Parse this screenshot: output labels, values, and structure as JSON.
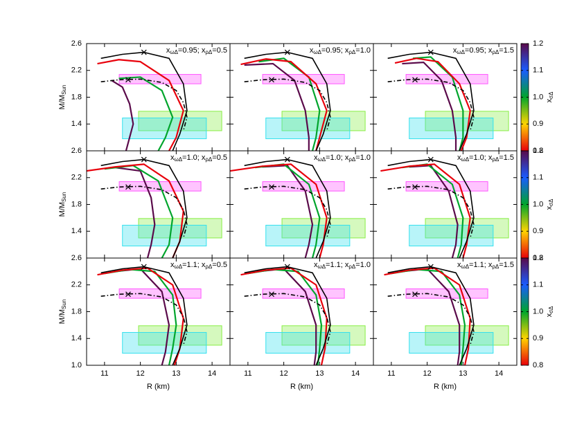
{
  "chart_data": {
    "type": "line",
    "xlabel": "R (km)",
    "ylabel": [
      "M/M",
      "Sun"
    ],
    "xlim": [
      10.5,
      14.5
    ],
    "xticks": [
      11,
      12,
      13,
      14
    ],
    "ylim": [
      1.0,
      2.6
    ],
    "yticks": [
      {
        "value": 1.0,
        "label": "1.0"
      },
      1.4,
      1.8,
      2.2,
      2.6
    ],
    "colorbar": {
      "label": [
        "x",
        "σΔ"
      ],
      "lim": [
        0.8,
        1.2
      ],
      "ticks": [
        0.8,
        0.9,
        {
          "value": 1.0,
          "label": "1.0"
        },
        1.1,
        1.2
      ],
      "colors": [
        "#e8000b",
        "#ffd400",
        "#00a52c",
        "#1a5cff",
        "#5a0a4a"
      ]
    },
    "envelope": {
      "color": "#000000",
      "R": [
        10.9,
        11.5,
        12.1,
        12.8,
        13.2,
        13.3,
        13.1,
        12.9
      ],
      "M": [
        2.38,
        2.44,
        2.47,
        2.38,
        2.0,
        1.6,
        1.25,
        1.0
      ]
    },
    "envelope_marker": {
      "x": 12.1,
      "y": 2.47
    },
    "reference": {
      "color": "#000000",
      "R": [
        10.9,
        11.4,
        12.0,
        12.6,
        13.0,
        13.2,
        13.3,
        13.2
      ],
      "M": [
        2.03,
        2.06,
        2.07,
        2.02,
        1.9,
        1.72,
        1.5,
        1.3
      ]
    },
    "reference_marker": {
      "x": 11.66,
      "y": 2.06
    },
    "regions": [
      {
        "color": "#ff55ff",
        "xlim": [
          11.41,
          13.69
        ],
        "ylim": [
          2.0,
          2.14
        ]
      },
      {
        "color": "#88ee44",
        "xlim": [
          11.95,
          14.27
        ],
        "ylim": [
          1.3,
          1.59
        ]
      },
      {
        "color": "#33e0ee",
        "xlim": [
          11.5,
          13.84
        ],
        "ylim": [
          1.18,
          1.49
        ]
      }
    ],
    "panels": [
      {
        "label": [
          "x",
          "ωΔ",
          "=0.95; x",
          "ρΔ",
          "=0.5"
        ],
        "curves": [
          {
            "x_sigma": 0.8,
            "R": [
              10.8,
              11.4,
              12.0,
              12.8,
              13.2,
              13.0,
              12.8
            ],
            "M": [
              2.3,
              2.36,
              2.33,
              2.05,
              1.6,
              1.2,
              1.0
            ]
          },
          {
            "x_sigma": 1.0,
            "R": [
              11.4,
              12.0,
              12.6,
              12.9,
              12.7,
              12.5
            ],
            "M": [
              2.08,
              2.1,
              1.9,
              1.5,
              1.2,
              1.0
            ]
          },
          {
            "x_sigma": 1.2,
            "R": [
              11.2,
              11.5,
              11.7,
              11.8,
              11.7,
              11.6
            ],
            "M": [
              2.05,
              1.95,
              1.7,
              1.4,
              1.2,
              1.0
            ]
          }
        ]
      },
      {
        "label": [
          "x",
          "ωΔ",
          "=0.95; x",
          "ρΔ",
          "=1.0"
        ],
        "curves": [
          {
            "x_sigma": 0.8,
            "R": [
              10.8,
              11.5,
              12.2,
              12.9,
              13.2,
              13.0,
              12.9
            ],
            "M": [
              2.29,
              2.37,
              2.33,
              2.0,
              1.6,
              1.2,
              1.0
            ]
          },
          {
            "x_sigma": 1.0,
            "R": [
              11.3,
              12.0,
              12.7,
              13.0,
              12.9,
              12.8
            ],
            "M": [
              2.33,
              2.38,
              2.1,
              1.6,
              1.2,
              1.0
            ]
          },
          {
            "x_sigma": 1.2,
            "R": [
              10.9,
              11.7,
              12.3,
              12.6,
              12.7,
              12.7
            ],
            "M": [
              2.28,
              2.3,
              2.05,
              1.6,
              1.2,
              1.0
            ]
          }
        ]
      },
      {
        "label": [
          "x",
          "ωΔ",
          "=0.95; x",
          "ρΔ",
          "=1.5"
        ],
        "curves": [
          {
            "x_sigma": 0.8,
            "R": [
              11.1,
              11.7,
              12.3,
              12.9,
              13.2,
              13.1,
              12.95
            ],
            "M": [
              2.31,
              2.38,
              2.33,
              2.0,
              1.6,
              1.2,
              1.0
            ]
          },
          {
            "x_sigma": 1.0,
            "R": [
              11.6,
              12.1,
              12.7,
              13.0,
              13.0,
              12.9
            ],
            "M": [
              2.38,
              2.4,
              2.1,
              1.6,
              1.2,
              1.0
            ]
          },
          {
            "x_sigma": 1.2,
            "R": [
              11.3,
              11.9,
              12.4,
              12.7,
              12.8,
              12.8
            ],
            "M": [
              2.3,
              2.32,
              2.05,
              1.6,
              1.2,
              1.0
            ]
          }
        ]
      },
      {
        "label": [
          "x",
          "ωΔ",
          "=1.0; x",
          "ρΔ",
          "=0.5"
        ],
        "curves": [
          {
            "x_sigma": 0.8,
            "R": [
              10.5,
              11.3,
              12.1,
              12.8,
              13.2,
              13.1,
              12.9
            ],
            "M": [
              2.3,
              2.36,
              2.4,
              2.15,
              1.7,
              1.25,
              1.0
            ]
          },
          {
            "x_sigma": 1.0,
            "R": [
              11.0,
              11.8,
              12.5,
              12.9,
              12.8,
              12.6
            ],
            "M": [
              2.33,
              2.38,
              2.15,
              1.6,
              1.2,
              1.0
            ]
          },
          {
            "x_sigma": 1.2,
            "R": [
              11.3,
              12.0,
              12.3,
              12.4,
              12.3,
              12.2
            ],
            "M": [
              2.35,
              2.3,
              1.9,
              1.5,
              1.2,
              1.0
            ]
          }
        ]
      },
      {
        "label": [
          "x",
          "ωΔ",
          "=1.0; x",
          "ρΔ",
          "=1.0"
        ],
        "curves": [
          {
            "x_sigma": 0.8,
            "R": [
              10.5,
              11.4,
              12.2,
              12.9,
              13.2,
              13.1,
              13.0
            ],
            "M": [
              2.3,
              2.37,
              2.4,
              2.1,
              1.6,
              1.2,
              1.0
            ]
          },
          {
            "x_sigma": 1.0,
            "R": [
              11.2,
              12.0,
              12.7,
              13.0,
              12.9,
              12.8
            ],
            "M": [
              2.35,
              2.4,
              2.1,
              1.6,
              1.2,
              1.0
            ]
          },
          {
            "x_sigma": 1.2,
            "R": [
              11.4,
              12.1,
              12.6,
              12.8,
              12.7,
              12.6
            ],
            "M": [
              2.36,
              2.38,
              2.0,
              1.5,
              1.2,
              1.0
            ]
          }
        ]
      },
      {
        "label": [
          "x",
          "ωΔ",
          "=1.0; x",
          "ρΔ",
          "=1.5"
        ],
        "curves": [
          {
            "x_sigma": 0.8,
            "R": [
              10.7,
              11.5,
              12.2,
              12.9,
              13.2,
              13.1,
              13.0
            ],
            "M": [
              2.3,
              2.37,
              2.4,
              2.1,
              1.6,
              1.2,
              1.0
            ]
          },
          {
            "x_sigma": 1.0,
            "R": [
              11.3,
              12.0,
              12.7,
              13.0,
              12.95,
              12.85
            ],
            "M": [
              2.35,
              2.4,
              2.1,
              1.6,
              1.2,
              1.0
            ]
          },
          {
            "x_sigma": 1.2,
            "R": [
              11.5,
              12.1,
              12.6,
              12.85,
              12.8,
              12.7
            ],
            "M": [
              2.36,
              2.38,
              2.0,
              1.5,
              1.2,
              1.0
            ]
          }
        ]
      },
      {
        "label": [
          "x",
          "ωΔ",
          "=1.1; x",
          "ρΔ",
          "=0.5"
        ],
        "curves": [
          {
            "x_sigma": 0.8,
            "R": [
              10.8,
              11.5,
              12.2,
              12.9,
              13.2,
              13.1,
              12.95
            ],
            "M": [
              2.35,
              2.42,
              2.45,
              2.2,
              1.7,
              1.25,
              1.0
            ]
          },
          {
            "x_sigma": 1.0,
            "R": [
              11.0,
              11.7,
              12.4,
              12.9,
              13.0,
              12.9,
              12.8
            ],
            "M": [
              2.37,
              2.43,
              2.4,
              2.05,
              1.6,
              1.25,
              1.0
            ]
          },
          {
            "x_sigma": 1.2,
            "R": [
              11.3,
              12.0,
              12.6,
              12.8,
              12.7,
              12.6
            ],
            "M": [
              2.4,
              2.44,
              2.1,
              1.6,
              1.2,
              1.0
            ]
          }
        ]
      },
      {
        "label": [
          "x",
          "ωΔ",
          "=1.1; x",
          "ρΔ",
          "=1.0"
        ],
        "curves": [
          {
            "x_sigma": 0.8,
            "R": [
              10.8,
              11.5,
              12.2,
              12.9,
              13.2,
              13.15,
              13.05
            ],
            "M": [
              2.35,
              2.42,
              2.45,
              2.2,
              1.7,
              1.25,
              1.0
            ]
          },
          {
            "x_sigma": 1.0,
            "R": [
              11.0,
              11.7,
              12.4,
              12.9,
              13.05,
              13.0,
              12.95
            ],
            "M": [
              2.37,
              2.43,
              2.4,
              2.05,
              1.6,
              1.25,
              1.0
            ]
          },
          {
            "x_sigma": 1.2,
            "R": [
              11.3,
              12.0,
              12.6,
              12.9,
              12.9,
              12.85
            ],
            "M": [
              2.4,
              2.44,
              2.1,
              1.6,
              1.2,
              1.0
            ]
          }
        ]
      },
      {
        "label": [
          "x",
          "ωΔ",
          "=1.1; x",
          "ρΔ",
          "=1.5"
        ],
        "curves": [
          {
            "x_sigma": 0.8,
            "R": [
              10.8,
              11.5,
              12.2,
              12.9,
              13.2,
              13.15,
              13.05
            ],
            "M": [
              2.35,
              2.42,
              2.45,
              2.2,
              1.7,
              1.25,
              1.0
            ]
          },
          {
            "x_sigma": 1.0,
            "R": [
              11.0,
              11.7,
              12.4,
              12.9,
              13.05,
              13.0,
              12.95
            ],
            "M": [
              2.37,
              2.43,
              2.4,
              2.05,
              1.6,
              1.25,
              1.0
            ]
          },
          {
            "x_sigma": 1.2,
            "R": [
              11.3,
              12.0,
              12.6,
              12.9,
              12.9,
              12.85
            ],
            "M": [
              2.4,
              2.44,
              2.1,
              1.6,
              1.2,
              1.0
            ]
          }
        ]
      }
    ]
  }
}
